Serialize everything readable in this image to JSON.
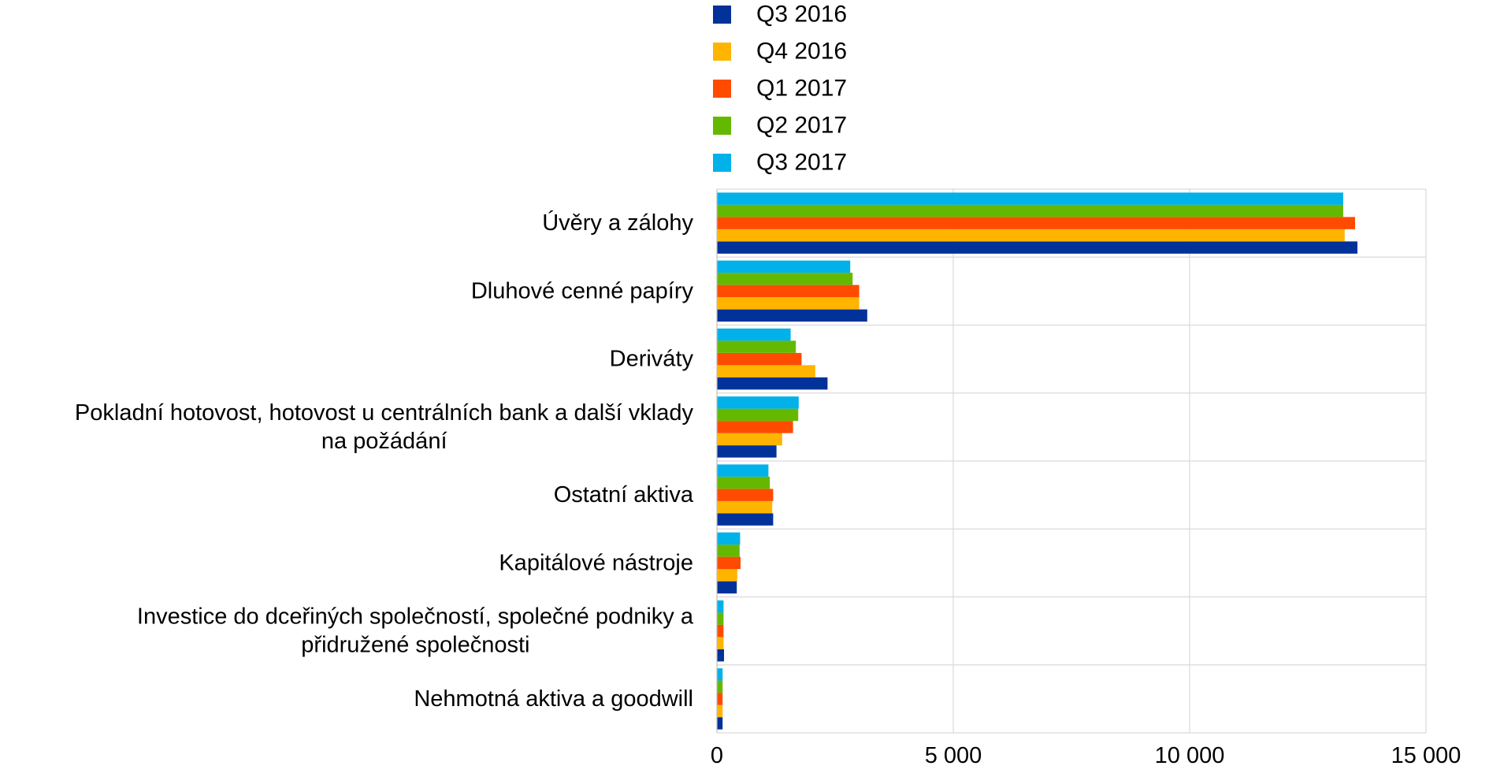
{
  "chart_data": {
    "type": "bar",
    "orientation": "horizontal",
    "categories": [
      "Úvěry a zálohy",
      "Dluhové cenné papíry",
      "Deriváty",
      "Pokladní hotovost, hotovost u centrálních bank a další vklady na požádání",
      "Ostatní aktiva",
      "Kapitálové nástroje",
      "Investice do dceřiných společností, společné podniky a přidružené společnosti",
      "Nehmotná aktiva a goodwill"
    ],
    "category_lines": [
      [
        "Úvěry a zálohy"
      ],
      [
        "Dluhové cenné papíry"
      ],
      [
        "Deriváty"
      ],
      [
        "Pokladní hotovost, hotovost u centrálních bank a další vklady",
        "na požádání"
      ],
      [
        "Ostatní aktiva"
      ],
      [
        "Kapitálové nástroje"
      ],
      [
        "Investice do dceřiných společností, společné podniky a",
        "přidružené společnosti"
      ],
      [
        "Nehmotná aktiva a goodwill"
      ]
    ],
    "series": [
      {
        "name": "Q3 2016",
        "color": "#003299",
        "values": [
          13550,
          3180,
          2340,
          1260,
          1190,
          420,
          150,
          120
        ]
      },
      {
        "name": "Q4 2016",
        "color": "#FFB400",
        "values": [
          13280,
          3010,
          2080,
          1380,
          1170,
          430,
          140,
          120
        ]
      },
      {
        "name": "Q1 2017",
        "color": "#FF4B00",
        "values": [
          13500,
          3010,
          1790,
          1610,
          1190,
          500,
          140,
          120
        ]
      },
      {
        "name": "Q2 2017",
        "color": "#65B800",
        "values": [
          13250,
          2870,
          1670,
          1720,
          1120,
          480,
          140,
          120
        ]
      },
      {
        "name": "Q3 2017",
        "color": "#00B1EA",
        "values": [
          13250,
          2820,
          1560,
          1730,
          1090,
          490,
          140,
          120
        ]
      }
    ],
    "xlim": [
      0,
      15000
    ],
    "xticks": [
      0,
      5000,
      10000,
      15000
    ],
    "xtick_labels": [
      "0",
      "5 000",
      "10 000",
      "15 000"
    ],
    "title": "",
    "xlabel": "",
    "ylabel": "",
    "grid": true,
    "legend_position": "top-center"
  }
}
